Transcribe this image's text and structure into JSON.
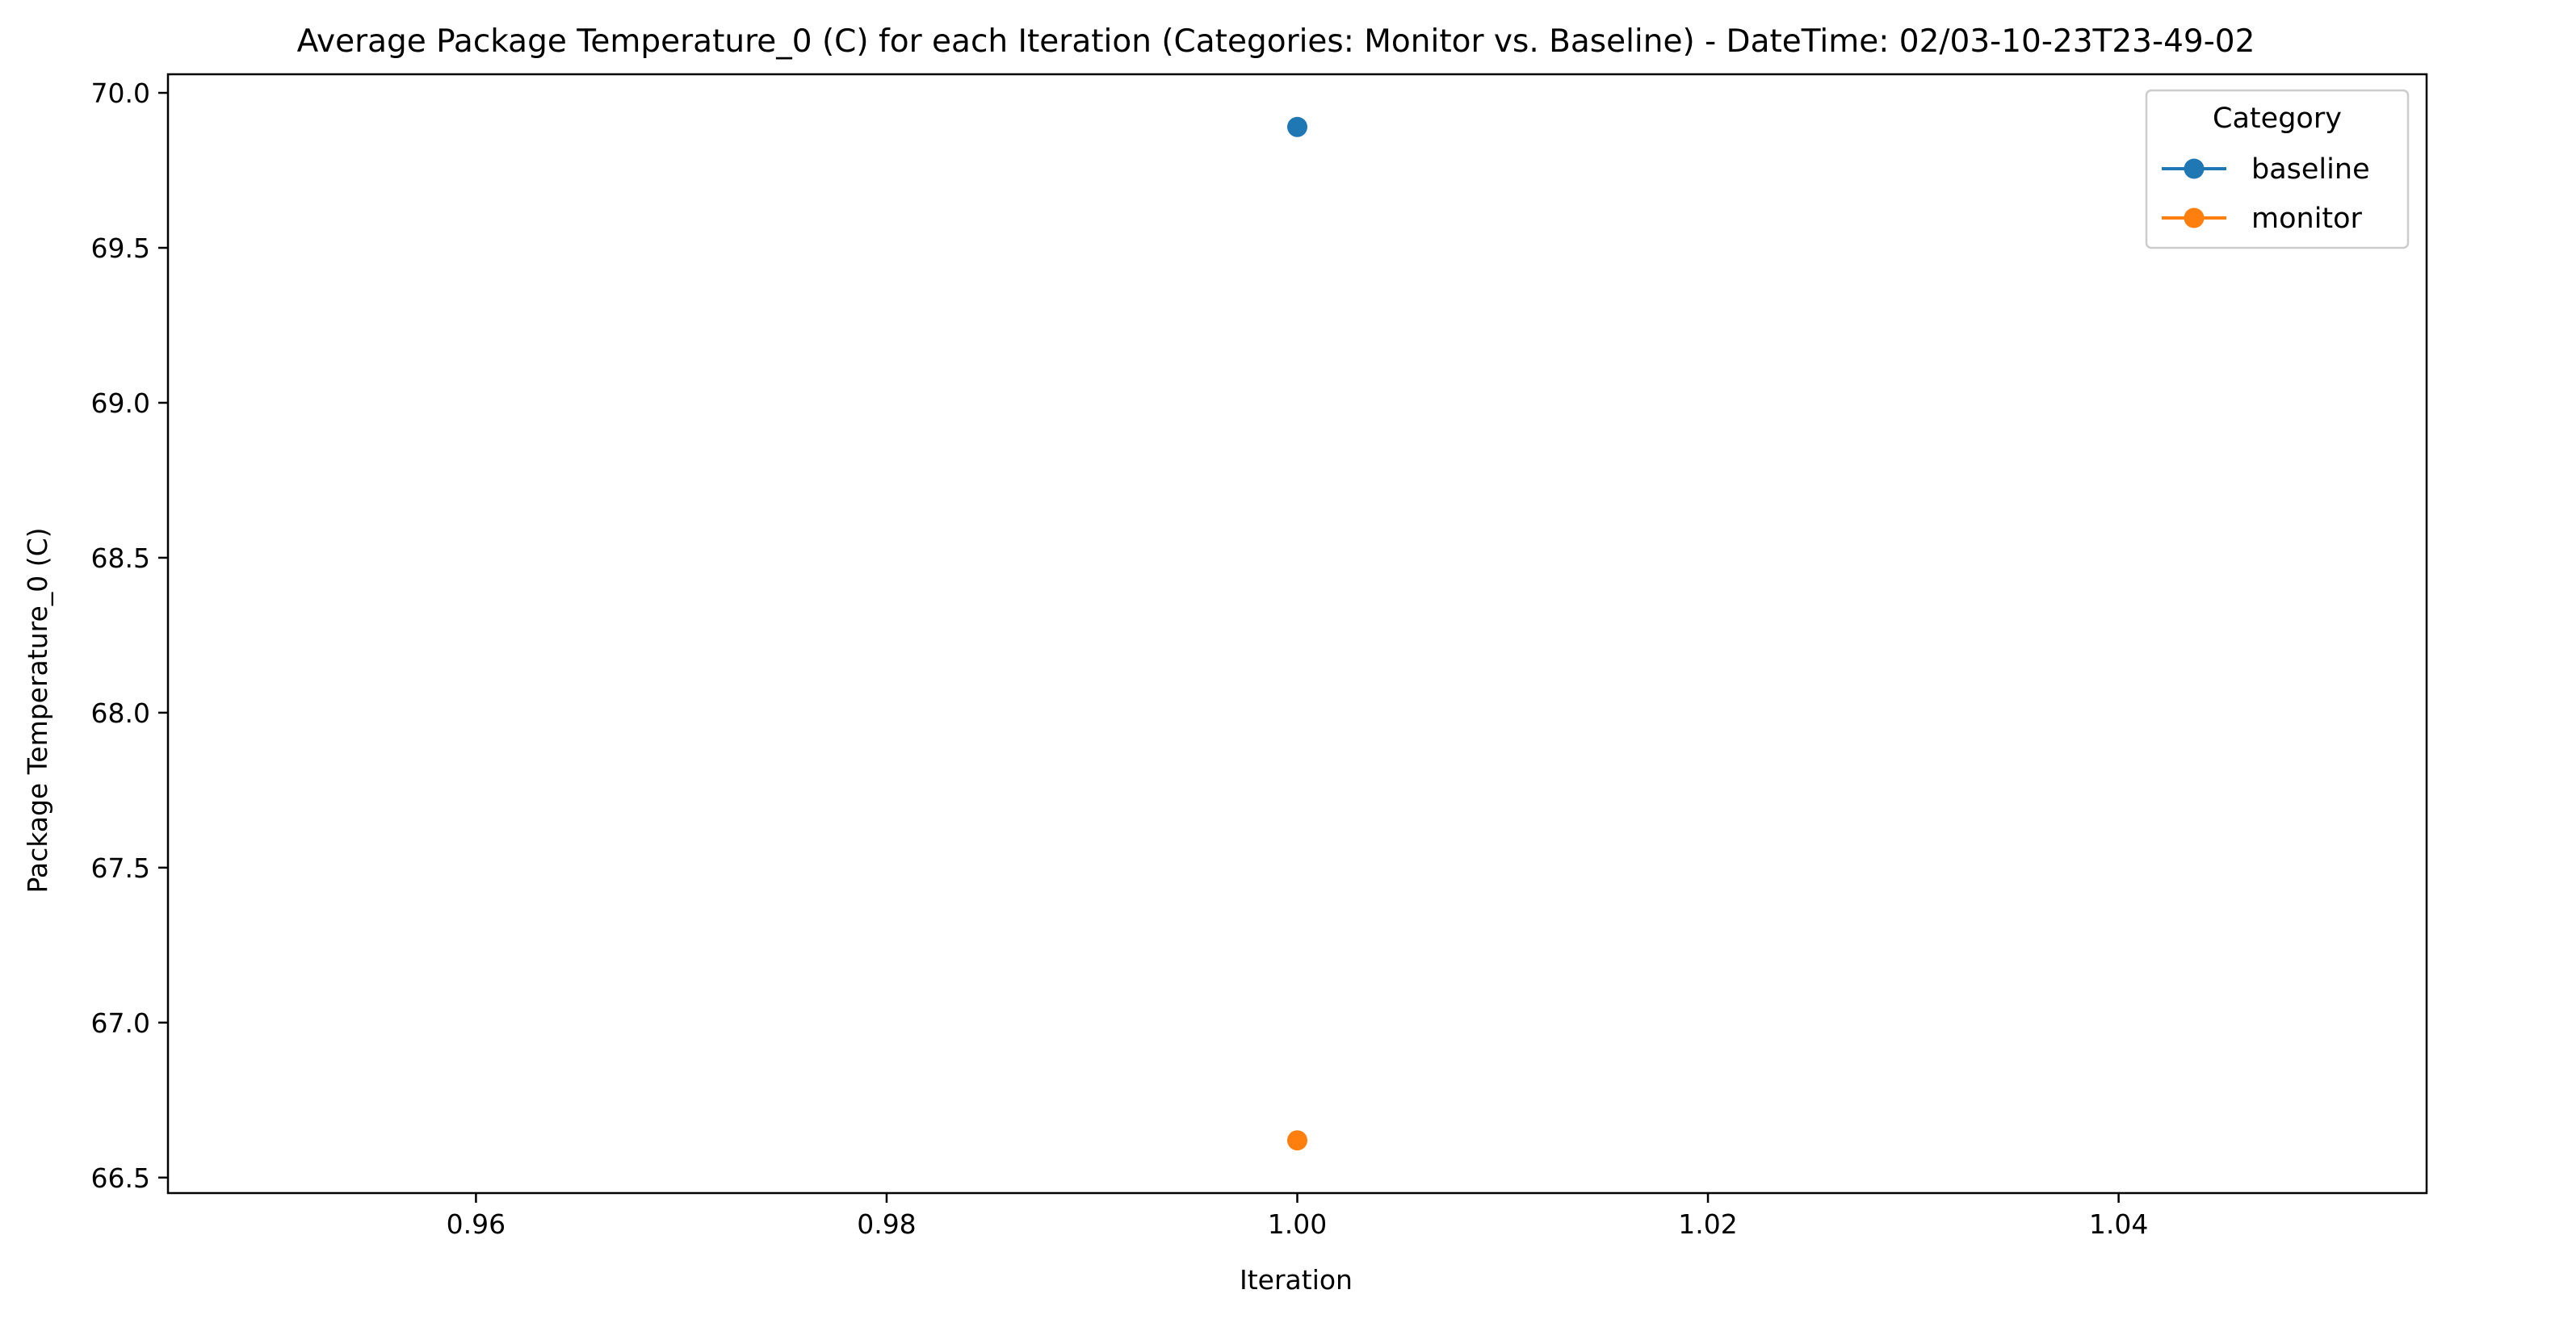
{
  "chart_data": {
    "type": "line",
    "title": "Average Package Temperature_0 (C) for each Iteration (Categories: Monitor vs. Baseline) - DateTime: 02/03-10-23T23-49-02",
    "xlabel": "Iteration",
    "ylabel": "Package Temperature_0 (C)",
    "xlim": [
      0.945,
      1.055
    ],
    "ylim": [
      66.45,
      70.06
    ],
    "xticks": [
      0.96,
      0.98,
      1.0,
      1.02,
      1.04
    ],
    "xtick_labels": [
      "0.96",
      "0.98",
      "1.00",
      "1.02",
      "1.04"
    ],
    "yticks": [
      66.5,
      67.0,
      67.5,
      68.0,
      68.5,
      69.0,
      69.5,
      70.0
    ],
    "ytick_labels": [
      "66.5",
      "67.0",
      "67.5",
      "68.0",
      "68.5",
      "69.0",
      "69.5",
      "70.0"
    ],
    "grid": false,
    "legend": {
      "title": "Category",
      "placement": "top-right"
    },
    "series": [
      {
        "name": "baseline",
        "x": [
          1.0
        ],
        "y": [
          69.89
        ],
        "color": "#1f77b4",
        "marker": "circle"
      },
      {
        "name": "monitor",
        "x": [
          1.0
        ],
        "y": [
          66.62
        ],
        "color": "#ff7f0e",
        "marker": "circle"
      }
    ]
  }
}
